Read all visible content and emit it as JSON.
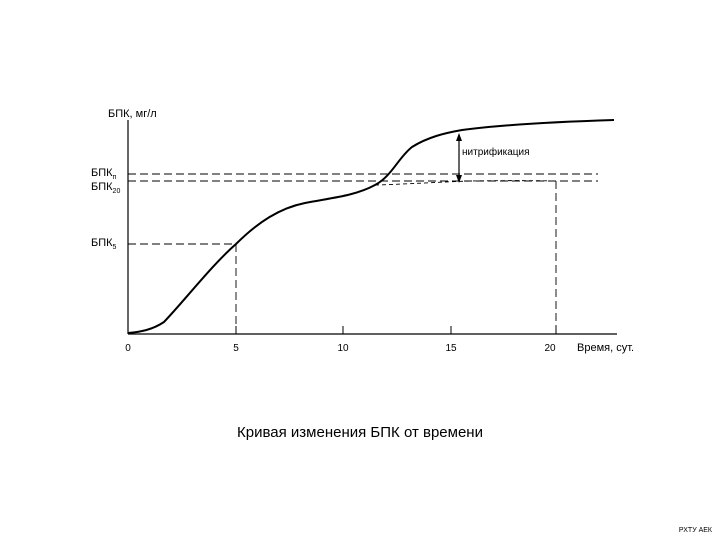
{
  "diagram": {
    "y_axis_label": "БПК, мг/л",
    "x_axis_label": "Время, сут.",
    "x_ticks": [
      "0",
      "5",
      "10",
      "15",
      "20"
    ],
    "labels": {
      "bpk_n_main": "БПК",
      "bpk_n_sub": "п",
      "bpk_20_main": "БПК",
      "bpk_20_sub": "20",
      "bpk_5_main": "БПК",
      "bpk_5_sub": "5",
      "nitrification": "нитрификация"
    }
  },
  "caption": "Кривая изменения БПК от времени",
  "footer": "РХТУ АЕК"
}
